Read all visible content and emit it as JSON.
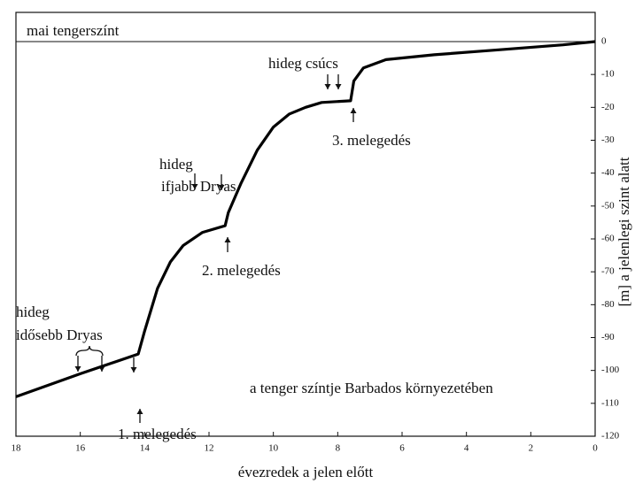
{
  "chart_data": {
    "type": "line",
    "x_label": "évezredek a jelen előtt",
    "y_label": "[m] a jelenlegi szint alatt",
    "xlim": [
      18,
      0
    ],
    "xticks": [
      18,
      16,
      14,
      12,
      10,
      8,
      6,
      4,
      2,
      0
    ],
    "ylim": [
      -120,
      0
    ],
    "yticks": [
      0,
      -10,
      -20,
      -30,
      -40,
      -50,
      -60,
      -70,
      -80,
      -90,
      -100,
      -110,
      -120
    ],
    "series": [
      {
        "color": "#000000",
        "x": [
          18,
          16,
          14.2,
          14.0,
          13.6,
          13.2,
          12.8,
          12.2,
          11.5,
          11.4,
          11.0,
          10.5,
          10,
          9.5,
          9,
          8.5,
          7.6,
          7.5,
          7.2,
          6.5,
          5,
          3,
          1,
          0
        ],
        "values": [
          -108,
          -101,
          -95,
          -88,
          -75,
          -67,
          -62,
          -58,
          -56,
          -52,
          -43,
          -33,
          -26,
          -22,
          -20,
          -18.5,
          -18,
          -12,
          -8,
          -5.5,
          -4,
          -2.5,
          -1,
          0
        ]
      }
    ],
    "annotations": [
      "mai tengerszínt",
      "hideg csúcs",
      "3. melegedés",
      "hideg",
      "ifjabb Dryas",
      "2. melegedés",
      "hideg",
      "idősebb Dryas",
      "1. melegedés",
      "a tenger színtje Barbados környezetében"
    ]
  }
}
